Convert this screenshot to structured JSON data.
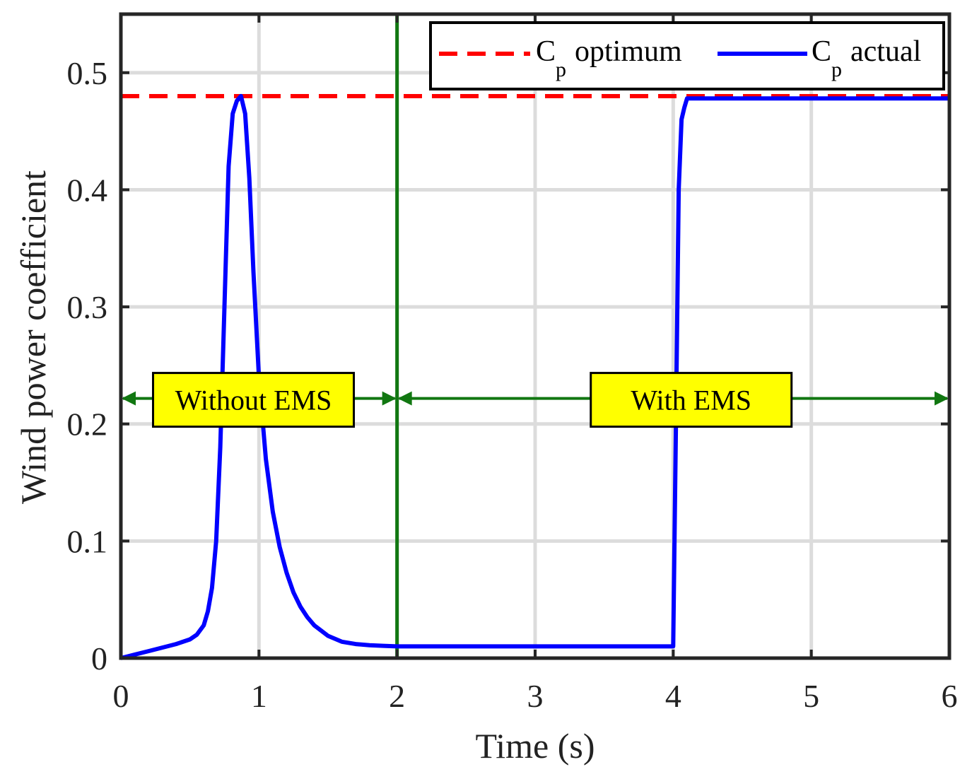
{
  "chart_data": {
    "type": "line",
    "title": "",
    "xlabel": "Time (s)",
    "ylabel": "Wind power coefficient",
    "xlim": [
      0,
      6
    ],
    "ylim": [
      0,
      0.55
    ],
    "xticks": [
      0,
      1,
      2,
      3,
      4,
      5,
      6
    ],
    "yticks": [
      0,
      0.1,
      0.2,
      0.3,
      0.4,
      0.5
    ],
    "xtick_labels": [
      "0",
      "1",
      "2",
      "3",
      "4",
      "5",
      "6"
    ],
    "ytick_labels": [
      "0",
      "0.1",
      "0.2",
      "0.3",
      "0.4",
      "0.5"
    ],
    "grid": true,
    "legend_position": "top-right",
    "legend": [
      {
        "main": "C",
        "sub": "p",
        "rest": "optimum"
      },
      {
        "main": "C",
        "sub": "p",
        "rest": "actual"
      }
    ],
    "series": [
      {
        "name": "Cp optimum",
        "style": "dashed",
        "color": "#ff0000",
        "x": [
          0,
          6
        ],
        "y": [
          0.48,
          0.48
        ]
      },
      {
        "name": "Cp actual",
        "style": "solid",
        "color": "#0000ff",
        "x": [
          0,
          0.1,
          0.2,
          0.3,
          0.4,
          0.5,
          0.55,
          0.6,
          0.63,
          0.66,
          0.69,
          0.72,
          0.75,
          0.78,
          0.81,
          0.84,
          0.87,
          0.9,
          0.93,
          0.96,
          1.0,
          1.05,
          1.1,
          1.15,
          1.2,
          1.25,
          1.3,
          1.35,
          1.4,
          1.5,
          1.6,
          1.7,
          1.8,
          1.9,
          2.0,
          2.5,
          3.0,
          3.5,
          3.98,
          4.0,
          4.02,
          4.04,
          4.06,
          4.08,
          4.1,
          4.2,
          5.0,
          6.0
        ],
        "y": [
          0.0,
          0.003,
          0.006,
          0.009,
          0.012,
          0.016,
          0.02,
          0.028,
          0.04,
          0.06,
          0.1,
          0.18,
          0.3,
          0.42,
          0.465,
          0.476,
          0.48,
          0.465,
          0.41,
          0.33,
          0.24,
          0.17,
          0.125,
          0.095,
          0.073,
          0.056,
          0.044,
          0.035,
          0.028,
          0.019,
          0.014,
          0.012,
          0.011,
          0.0105,
          0.01,
          0.01,
          0.01,
          0.01,
          0.01,
          0.01,
          0.2,
          0.4,
          0.46,
          0.47,
          0.478,
          0.478,
          0.478,
          0.478
        ]
      }
    ],
    "vertical_line": {
      "x": 2,
      "color": "#117711"
    },
    "annotations": [
      {
        "text": "Without EMS",
        "x_from": 0,
        "x_to": 2,
        "y": 0.22,
        "x_center": 0.96
      },
      {
        "text": "With EMS",
        "x_from": 2,
        "x_to": 6,
        "y": 0.22,
        "x_center": 4.13
      }
    ]
  }
}
